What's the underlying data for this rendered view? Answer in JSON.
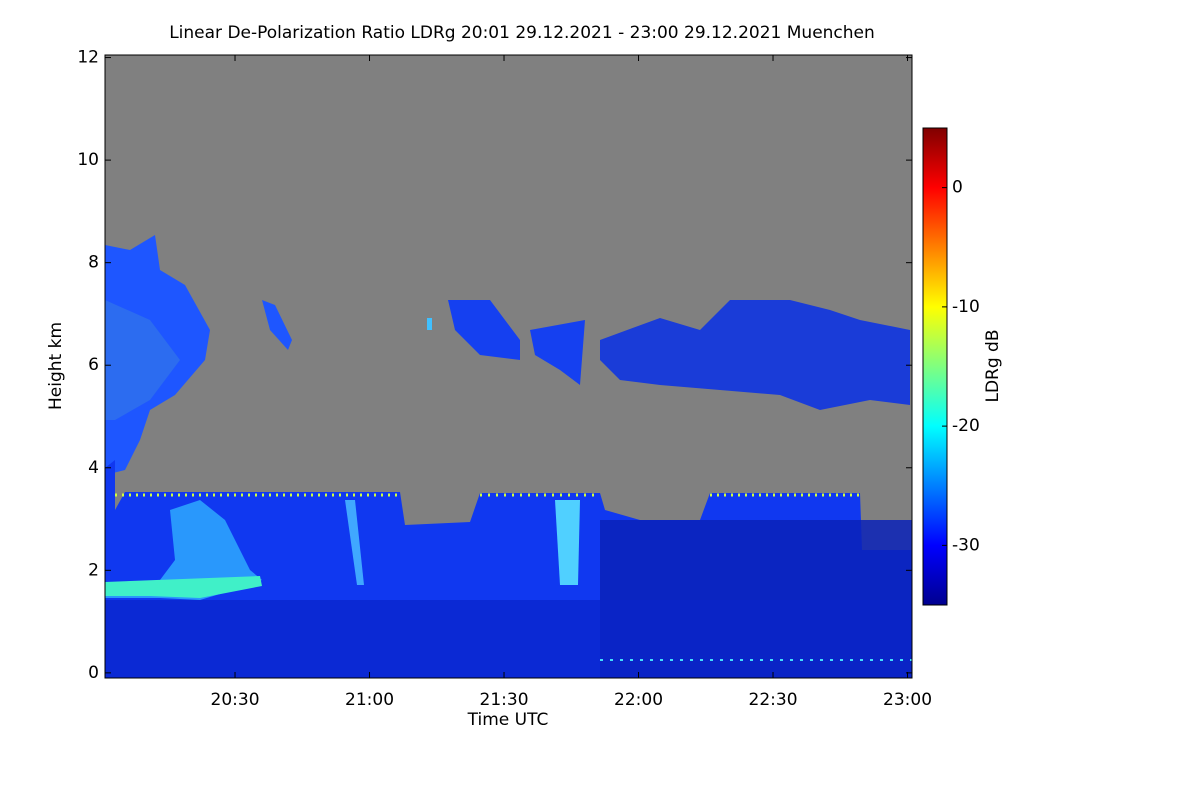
{
  "chart_data": {
    "type": "heatmap",
    "title": "Linear De-Polarization Ratio LDRg   20:01 29.12.2021 - 23:00 29.12.2021 Muenchen",
    "xlabel": "Time UTC",
    "ylabel": "Height km",
    "colorbar_label": "LDRg dB",
    "colormap": "jet",
    "xlim": [
      1201,
      1381
    ],
    "xticks": [
      {
        "value": 1230,
        "label": "20:30"
      },
      {
        "value": 1260,
        "label": "21:00"
      },
      {
        "value": 1290,
        "label": "21:30"
      },
      {
        "value": 1320,
        "label": "22:00"
      },
      {
        "value": 1350,
        "label": "22:30"
      },
      {
        "value": 1380,
        "label": "23:00"
      }
    ],
    "ylim": [
      -0.1,
      12.05
    ],
    "yticks": [
      0,
      2,
      4,
      6,
      8,
      10,
      12
    ],
    "clim": [
      -35,
      5
    ],
    "cticks": [
      0,
      -10,
      -20,
      -30
    ]
  }
}
